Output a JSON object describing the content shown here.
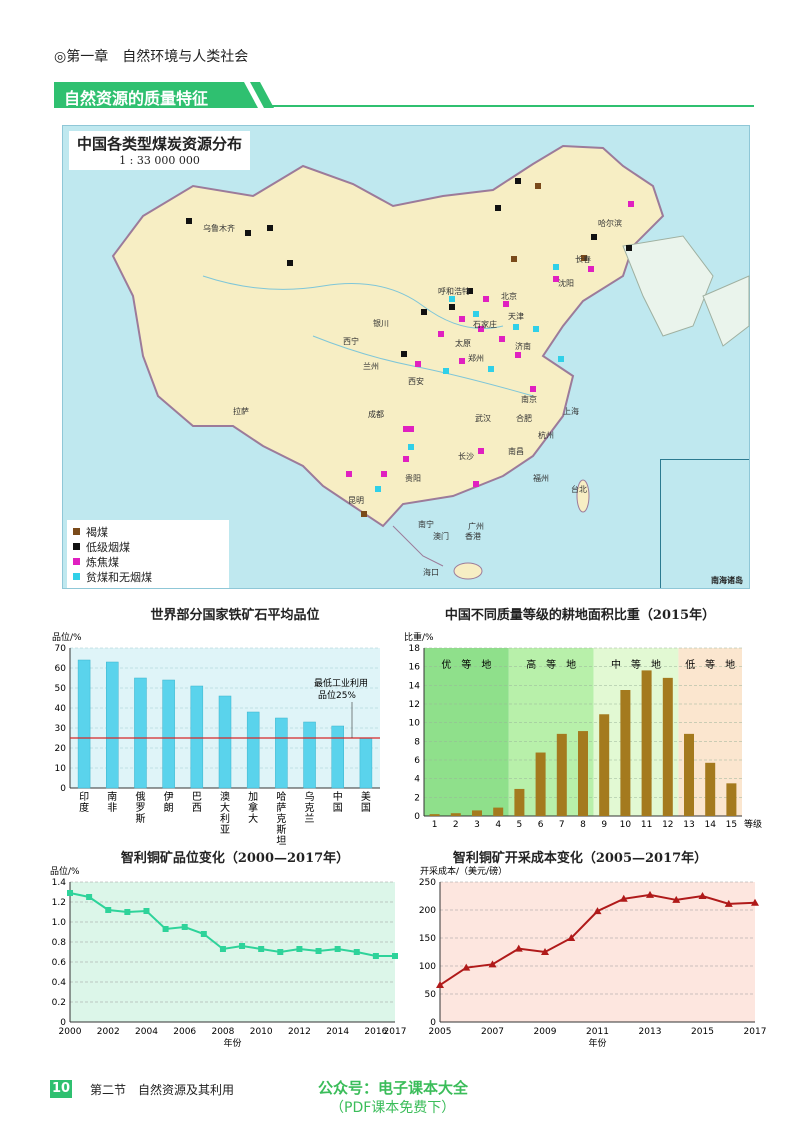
{
  "header": {
    "chapter": "◎第一章　自然环境与人类社会",
    "section": "自然资源的质量特征"
  },
  "map": {
    "title": "中国各类型煤炭资源分布",
    "scale": "1 : 33 000 000",
    "legend": [
      {
        "label": "褐煤",
        "color": "#7a4a1a"
      },
      {
        "label": "低级烟煤",
        "color": "#111111"
      },
      {
        "label": "炼焦煤",
        "color": "#e020c0"
      },
      {
        "label": "贫煤和无烟煤",
        "color": "#30d0e8"
      }
    ],
    "inset_label": "南海诸岛",
    "cities": [
      "乌鲁木齐",
      "哈尔滨",
      "长春",
      "沈阳",
      "呼和浩特",
      "北京",
      "天津",
      "银川",
      "石家庄",
      "太原",
      "济南",
      "西宁",
      "兰州",
      "西安",
      "郑州",
      "拉萨",
      "成都",
      "武汉",
      "南京",
      "上海",
      "合肥",
      "杭州",
      "长沙",
      "南昌",
      "贵阳",
      "福州",
      "台北",
      "昆明",
      "南宁",
      "广州",
      "澳门",
      "香港",
      "海口"
    ]
  },
  "charts": {
    "iron": {
      "title": "世界部分国家铁矿石平均品位",
      "ylabel": "品位/%",
      "annotation": [
        "最低工业利用",
        "品位25%"
      ],
      "yticks": [
        "0",
        "10",
        "20",
        "30",
        "40",
        "50",
        "60",
        "70"
      ]
    },
    "land": {
      "title": "中国不同质量等级的耕地面积比重（2015年）",
      "ylabel": "比重/%",
      "xunit": "等级",
      "bands": [
        "优　等　地",
        "高　等　地",
        "中　等　地",
        "低　等　地"
      ],
      "yticks": [
        "0",
        "2",
        "4",
        "6",
        "8",
        "10",
        "12",
        "14",
        "16",
        "18"
      ]
    },
    "copper_grade": {
      "title": "智利铜矿品位变化（2000—2017年）",
      "ylabel": "品位/%",
      "xlabel": "年份",
      "yticks": [
        "0",
        "0.2",
        "0.4",
        "0.6",
        "0.8",
        "1.0",
        "1.2",
        "1.4"
      ]
    },
    "copper_cost": {
      "title": "智利铜矿开采成本变化（2005—2017年）",
      "ylabel": "开采成本/（美元/磅）",
      "xlabel": "年份",
      "yticks": [
        "0",
        "50",
        "100",
        "150",
        "200",
        "250"
      ]
    }
  },
  "chart_data": [
    {
      "type": "bar",
      "title": "世界部分国家铁矿石平均品位",
      "ylabel": "品位/%",
      "ylim": [
        0,
        70
      ],
      "categories": [
        "印度",
        "南非",
        "俄罗斯",
        "伊朗",
        "巴西",
        "澳大利亚",
        "加拿大",
        "哈萨克斯坦",
        "乌克兰",
        "中国",
        "美国"
      ],
      "values": [
        64,
        63,
        55,
        54,
        51,
        46,
        38,
        35,
        33,
        31,
        25
      ],
      "reference_line": 25,
      "color": "#5ad3ec"
    },
    {
      "type": "bar",
      "title": "中国不同质量等级的耕地面积比重（2015年）",
      "ylabel": "比重/%",
      "ylim": [
        0,
        18
      ],
      "categories": [
        "1",
        "2",
        "3",
        "4",
        "5",
        "6",
        "7",
        "8",
        "9",
        "10",
        "11",
        "12",
        "13",
        "14",
        "15"
      ],
      "values": [
        0.2,
        0.3,
        0.6,
        0.9,
        2.9,
        6.8,
        8.8,
        9.1,
        10.9,
        13.5,
        15.6,
        14.8,
        8.8,
        5.7,
        3.5
      ],
      "color": "#a47a1e"
    },
    {
      "type": "line",
      "title": "智利铜矿品位变化（2000—2017年）",
      "ylabel": "品位/%",
      "xlabel": "年份",
      "ylim": [
        0,
        1.4
      ],
      "x": [
        2000,
        2001,
        2002,
        2003,
        2004,
        2005,
        2006,
        2007,
        2008,
        2009,
        2010,
        2011,
        2012,
        2013,
        2014,
        2015,
        2016,
        2017
      ],
      "values": [
        1.29,
        1.25,
        1.12,
        1.1,
        1.11,
        0.93,
        0.95,
        0.88,
        0.73,
        0.76,
        0.73,
        0.7,
        0.73,
        0.71,
        0.73,
        0.7,
        0.66,
        0.66
      ],
      "xticks": [
        "2000",
        "2002",
        "2004",
        "2006",
        "2008",
        "2010",
        "2012",
        "2014",
        "2016",
        "2017"
      ],
      "color": "#2ed39a"
    },
    {
      "type": "line",
      "title": "智利铜矿开采成本变化（2005—2017年）",
      "ylabel": "开采成本/（美元/磅）",
      "xlabel": "年份",
      "ylim": [
        0,
        250
      ],
      "x": [
        2005,
        2006,
        2007,
        2008,
        2009,
        2010,
        2011,
        2012,
        2013,
        2014,
        2015,
        2016,
        2017
      ],
      "values": [
        66,
        97,
        103,
        131,
        125,
        150,
        198,
        220,
        227,
        218,
        225,
        211,
        213
      ],
      "xticks": [
        "2005",
        "2007",
        "2009",
        "2011",
        "2013",
        "2015",
        "2017"
      ],
      "color": "#b01a1a"
    }
  ],
  "footer": {
    "page": "10",
    "text": "第二节　自然资源及其利用"
  },
  "watermark": {
    "line1": "公众号：电子课本大全",
    "line2": "（PDF课本免费下）"
  }
}
